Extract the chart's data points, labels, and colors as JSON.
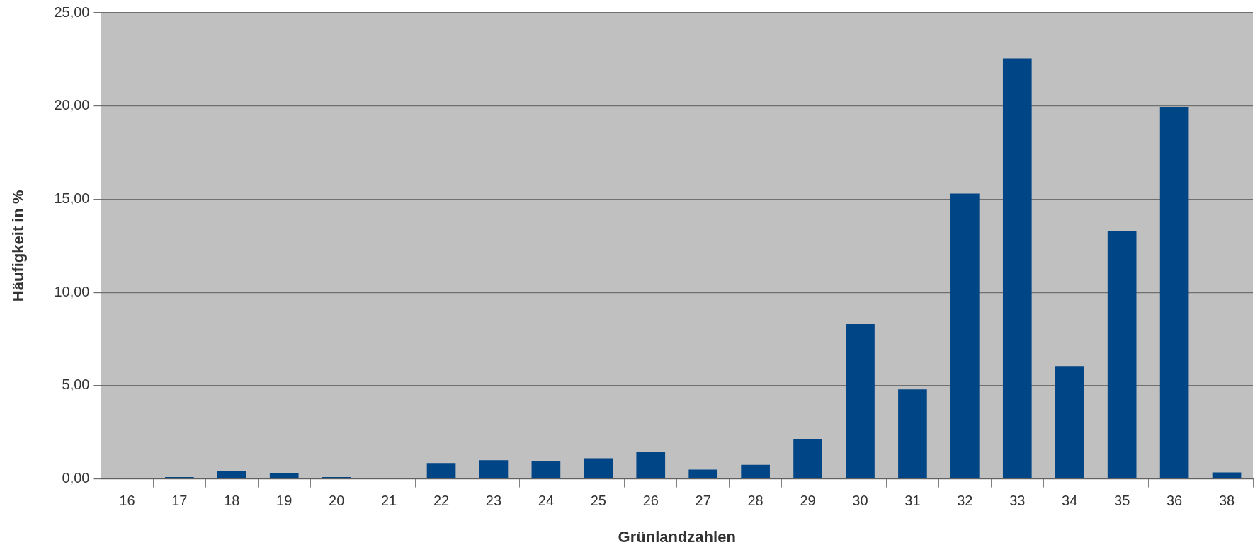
{
  "chart_data": {
    "type": "bar",
    "xlabel": "Grünlandzahlen",
    "ylabel": "Häufigkeit in %",
    "categories": [
      "16",
      "17",
      "18",
      "19",
      "20",
      "21",
      "22",
      "23",
      "24",
      "25",
      "26",
      "27",
      "28",
      "29",
      "30",
      "31",
      "32",
      "33",
      "34",
      "35",
      "36",
      "38"
    ],
    "values": [
      0,
      0.1,
      0.4,
      0.3,
      0.1,
      0.05,
      0.85,
      1.0,
      0.95,
      1.1,
      1.45,
      0.5,
      0.75,
      2.15,
      8.3,
      4.8,
      15.3,
      22.55,
      6.05,
      13.3,
      19.95,
      0.35
    ],
    "color": "#004586",
    "ylim": [
      0,
      25
    ],
    "yticks": [
      {
        "value": 0,
        "label": "0,00"
      },
      {
        "value": 5,
        "label": "5,00"
      },
      {
        "value": 10,
        "label": "10,00"
      },
      {
        "value": 15,
        "label": "15,00"
      },
      {
        "value": 20,
        "label": "20,00"
      },
      {
        "value": 25,
        "label": "25,00"
      }
    ],
    "grid": "y"
  }
}
